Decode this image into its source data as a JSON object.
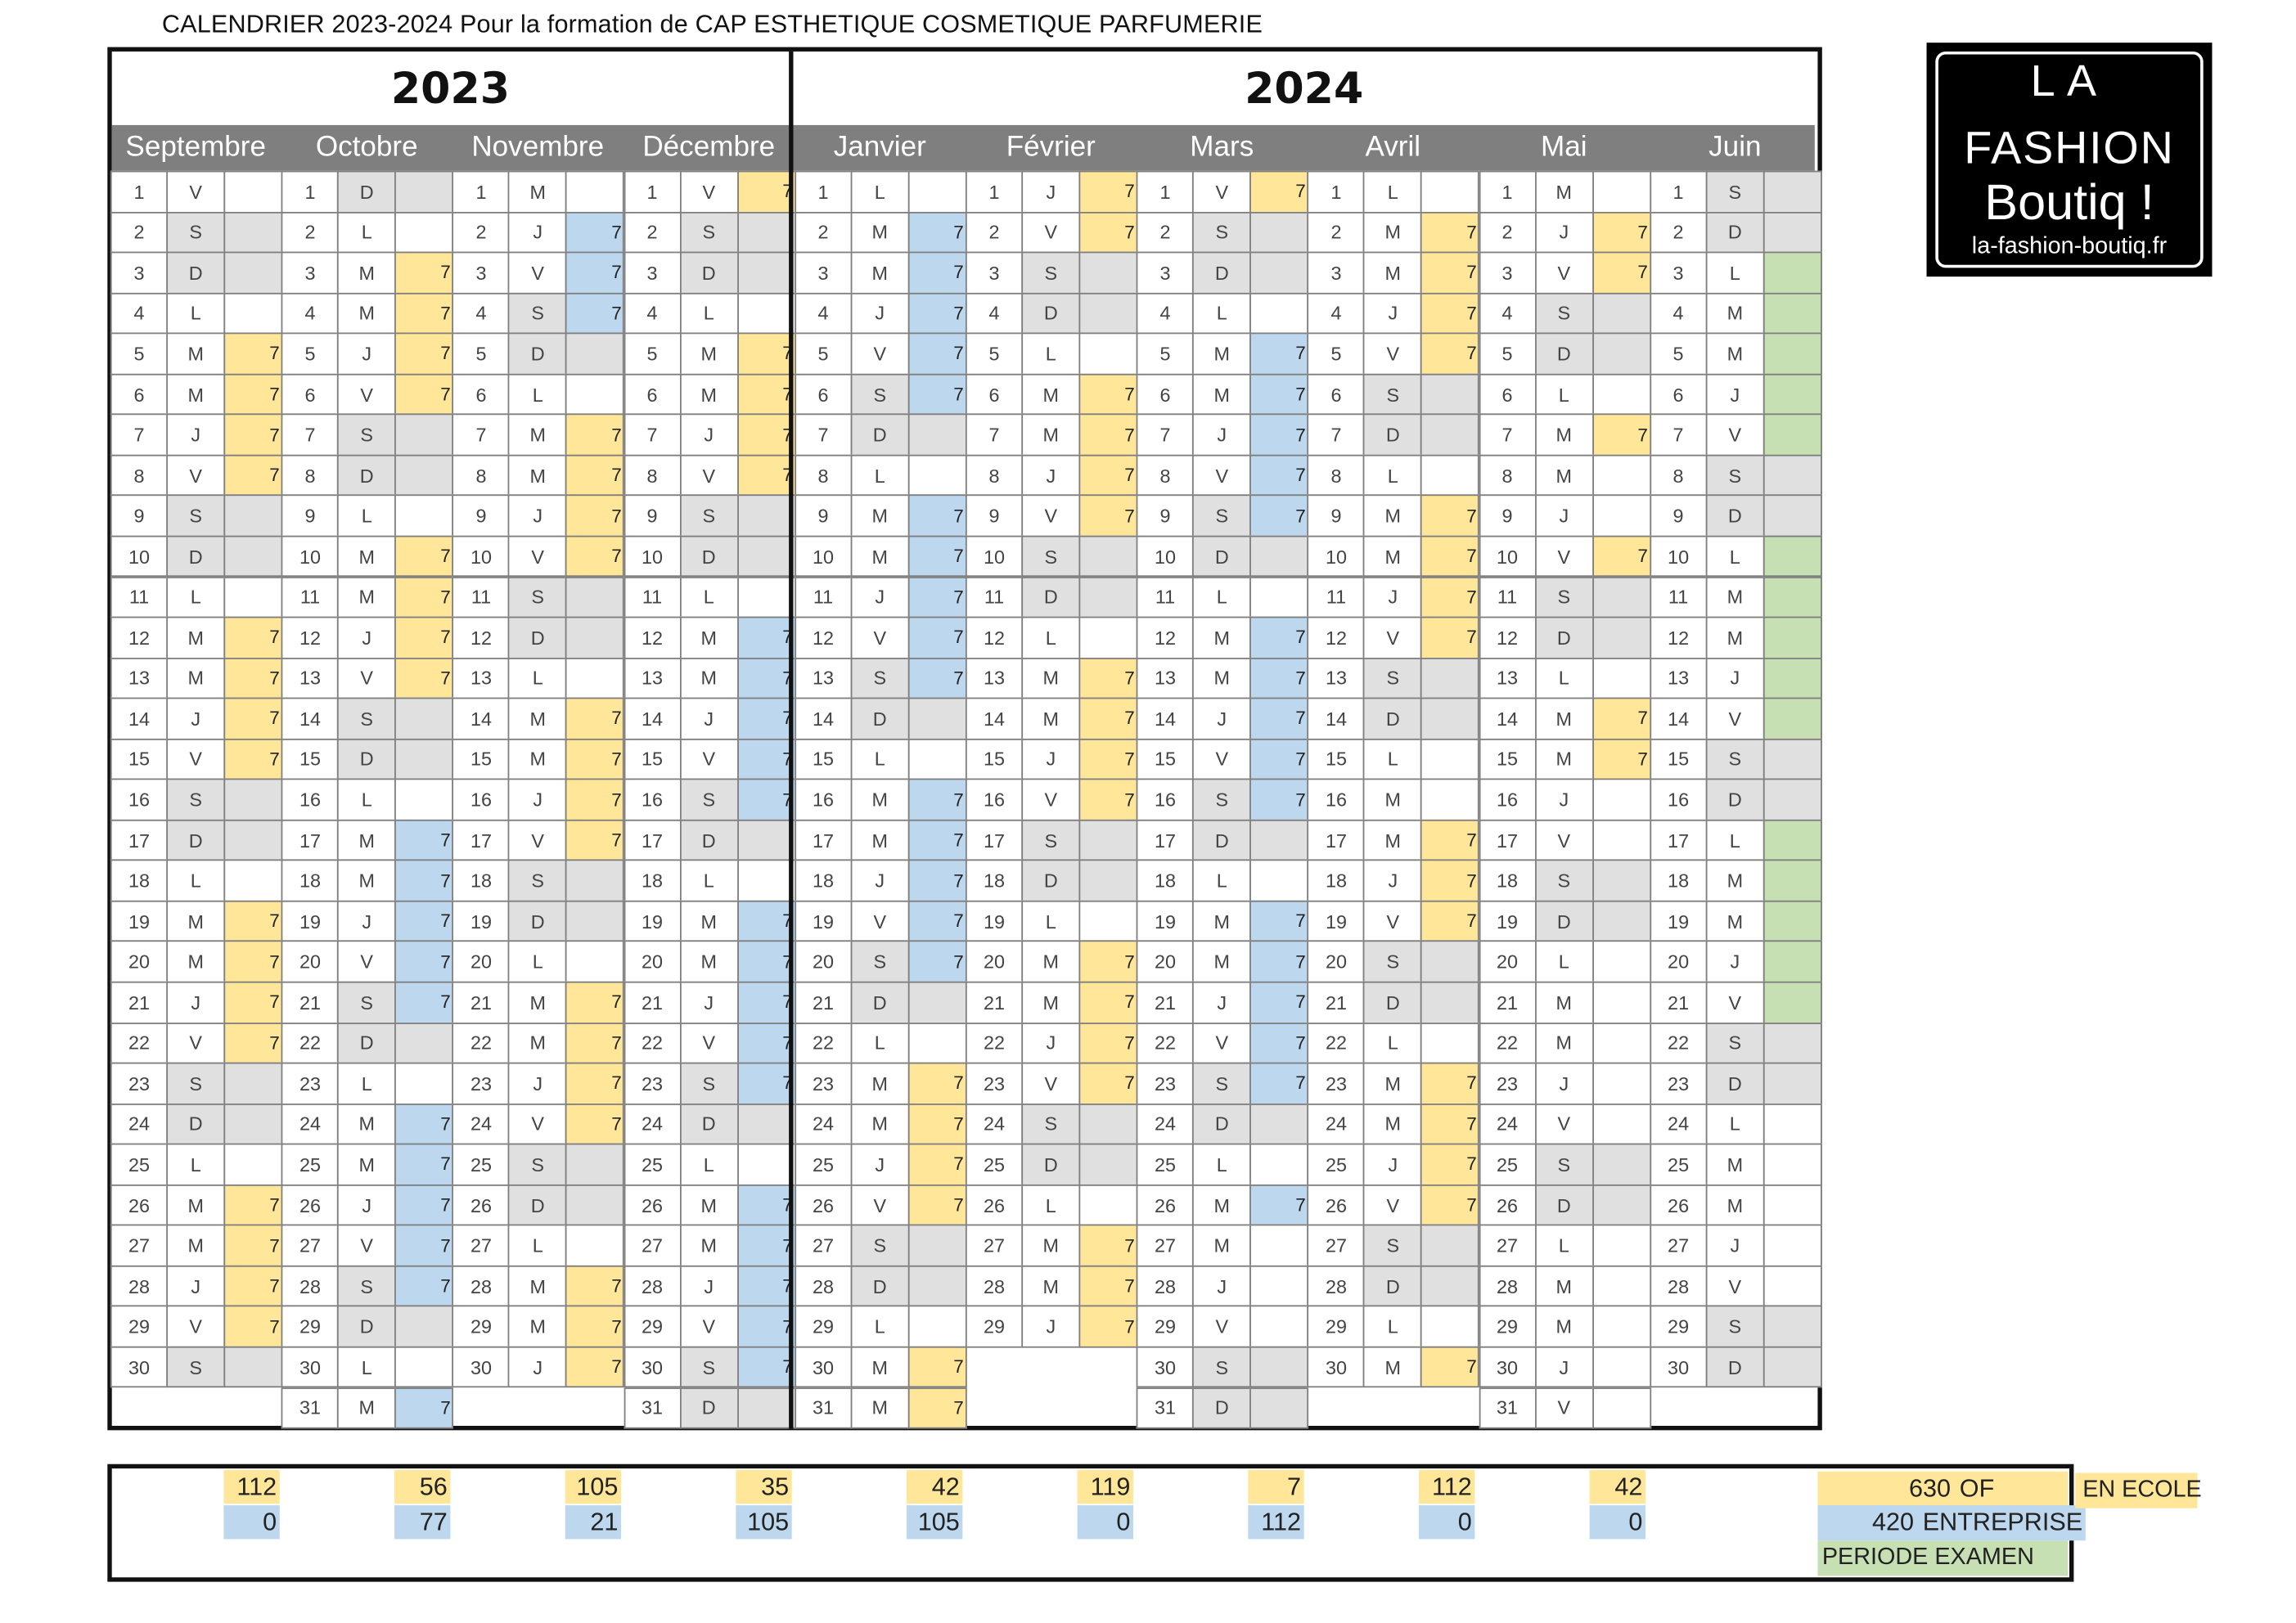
{
  "title": "CALENDRIER 2023-2024 Pour la formation de CAP ESTHETIQUE COSMETIQUE PARFUMERIE",
  "years": [
    "2023",
    "2024"
  ],
  "logo": {
    "line1": "LA",
    "line2": "FASHION",
    "line3": "Boutiq !",
    "url": "la-fashion-boutiq.fr"
  },
  "colors": {
    "ecole": "#ffe699",
    "entreprise": "#bdd7ee",
    "examen": "#c6e0b4",
    "weekend": "#e0e0e0",
    "header": "#7f7f7f"
  },
  "months": [
    {
      "name": "Septembre",
      "first_weekday": "V",
      "days": 30,
      "y": [
        5,
        6,
        7,
        8,
        12,
        13,
        14,
        15,
        19,
        20,
        21,
        22,
        26,
        27,
        28,
        29
      ],
      "b": [],
      "g": []
    },
    {
      "name": "Octobre",
      "first_weekday": "D",
      "days": 31,
      "y": [
        3,
        4,
        5,
        6,
        10,
        11,
        12,
        13
      ],
      "b": [
        17,
        18,
        19,
        20,
        21,
        24,
        25,
        26,
        27,
        28,
        31
      ],
      "g": []
    },
    {
      "name": "Novembre",
      "first_weekday": "M",
      "days": 30,
      "y": [
        7,
        8,
        9,
        10,
        14,
        15,
        16,
        17,
        21,
        22,
        23,
        24,
        28,
        29,
        30
      ],
      "b": [
        2,
        3,
        4
      ],
      "g": []
    },
    {
      "name": "Décembre",
      "first_weekday": "V",
      "days": 31,
      "y": [
        1,
        5,
        6,
        7,
        8
      ],
      "b": [
        12,
        13,
        14,
        15,
        16,
        19,
        20,
        21,
        22,
        23,
        26,
        27,
        28,
        29,
        30
      ],
      "g": []
    },
    {
      "name": "Janvier",
      "first_weekday": "L",
      "days": 31,
      "y": [
        23,
        24,
        25,
        26,
        30,
        31
      ],
      "b": [
        2,
        3,
        4,
        5,
        6,
        9,
        10,
        11,
        12,
        13,
        16,
        17,
        18,
        19,
        20
      ],
      "g": []
    },
    {
      "name": "Février",
      "first_weekday": "J",
      "days": 29,
      "y": [
        1,
        2,
        6,
        7,
        8,
        9,
        13,
        14,
        15,
        16,
        20,
        21,
        22,
        23,
        27,
        28,
        29
      ],
      "b": [],
      "g": []
    },
    {
      "name": "Mars",
      "first_weekday": "V",
      "days": 31,
      "y": [
        1
      ],
      "b": [
        5,
        6,
        7,
        8,
        9,
        12,
        13,
        14,
        15,
        16,
        19,
        20,
        21,
        22,
        23,
        26
      ],
      "g": []
    },
    {
      "name": "Avril",
      "first_weekday": "L",
      "days": 30,
      "y": [
        2,
        3,
        4,
        5,
        9,
        10,
        11,
        12,
        17,
        18,
        19,
        23,
        24,
        25,
        26,
        30
      ],
      "b": [],
      "g": []
    },
    {
      "name": "Mai",
      "first_weekday": "M",
      "days": 31,
      "y": [
        2,
        3,
        7,
        10,
        14,
        15
      ],
      "b": [],
      "g": []
    },
    {
      "name": "Juin",
      "first_weekday": "S",
      "days": 30,
      "y": [],
      "b": [],
      "g": [
        3,
        4,
        5,
        6,
        7,
        10,
        11,
        12,
        13,
        14,
        17,
        18,
        19,
        20,
        21
      ]
    }
  ],
  "hours_label": "7",
  "summary": {
    "ecole": [
      "112",
      "56",
      "105",
      "35",
      "42",
      "119",
      "7",
      "112",
      "42"
    ],
    "entreprise": [
      "0",
      "77",
      "21",
      "105",
      "105",
      "0",
      "112",
      "0",
      "0"
    ],
    "total_ecole": "630",
    "total_ecole_label": "OF",
    "total_entreprise": "420",
    "total_entreprise_label": "ENTREPRISE",
    "legend_ecole": "EN ECOLE",
    "legend_examen": "PERIODE EXAMEN"
  }
}
